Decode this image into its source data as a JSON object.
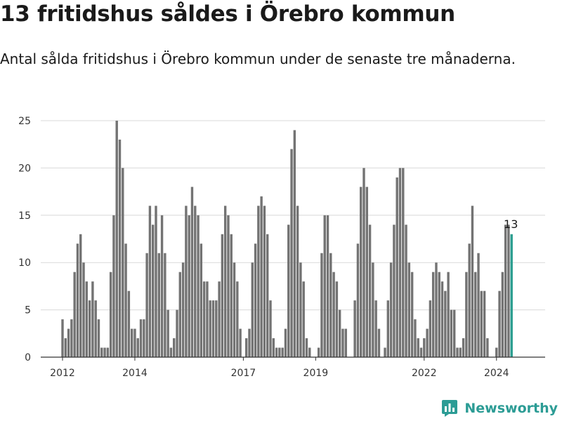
{
  "header": {
    "title": "13 fritidshus såldes i Örebro kommun",
    "subtitle": "Antal sålda fritidshus i Örebro kommun under de senaste tre månaderna."
  },
  "brand": {
    "name": "Newsworthy",
    "icon": "newsworthy-logo-icon",
    "color": "#2c9c95"
  },
  "chart_data": {
    "type": "bar",
    "title": "13 fritidshus såldes i Örebro kommun",
    "subtitle": "Antal sålda fritidshus i Örebro kommun under de senaste tre månaderna.",
    "xlabel": "",
    "ylabel": "",
    "x_start": "2012-01",
    "x_step": "month",
    "x_ticks": [
      2012,
      2014,
      2017,
      2019,
      2022,
      2024
    ],
    "y_ticks": [
      0,
      5,
      10,
      15,
      20,
      25
    ],
    "ylim": [
      0,
      25
    ],
    "grid": true,
    "bar_color": "#737373",
    "highlight_color": "#2a9d8f",
    "highlight_label": "13",
    "values": [
      4,
      2,
      3,
      4,
      9,
      12,
      13,
      10,
      8,
      6,
      8,
      6,
      4,
      1,
      1,
      1,
      9,
      15,
      25,
      23,
      20,
      12,
      7,
      3,
      3,
      2,
      4,
      4,
      11,
      16,
      14,
      16,
      11,
      15,
      11,
      5,
      1,
      2,
      5,
      9,
      10,
      16,
      15,
      18,
      16,
      15,
      12,
      8,
      8,
      6,
      6,
      6,
      8,
      13,
      16,
      15,
      13,
      10,
      8,
      3,
      0,
      2,
      3,
      10,
      12,
      16,
      17,
      16,
      13,
      6,
      2,
      1,
      1,
      1,
      3,
      14,
      22,
      24,
      16,
      10,
      8,
      2,
      1,
      0,
      0,
      1,
      11,
      15,
      15,
      11,
      9,
      8,
      5,
      3,
      3,
      0,
      0,
      6,
      12,
      18,
      20,
      18,
      14,
      10,
      6,
      3,
      0,
      1,
      6,
      10,
      14,
      19,
      20,
      20,
      14,
      10,
      9,
      4,
      2,
      1,
      2,
      3,
      6,
      9,
      10,
      9,
      8,
      7,
      9,
      5,
      5,
      1,
      1,
      2,
      9,
      12,
      16,
      9,
      11,
      7,
      7,
      2,
      0,
      0,
      1,
      7,
      9,
      14,
      14,
      13
    ]
  }
}
